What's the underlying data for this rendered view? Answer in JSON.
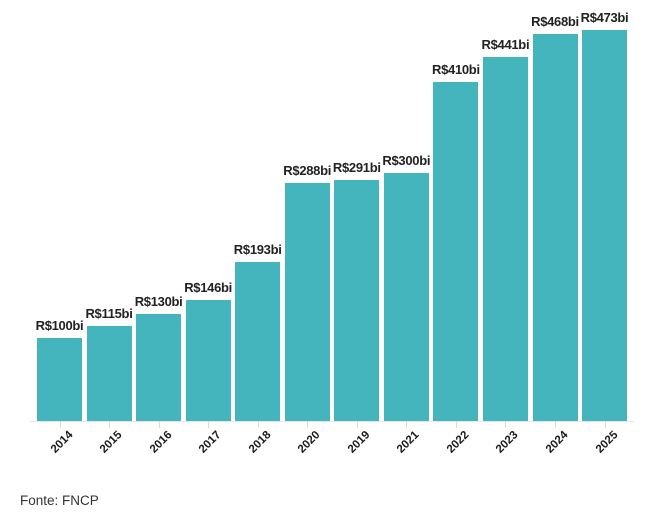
{
  "chart_data": {
    "type": "bar",
    "categories": [
      "2014",
      "2015",
      "2016",
      "2017",
      "2018",
      "2020",
      "2019",
      "2021",
      "2022",
      "2023",
      "2024",
      "2025"
    ],
    "values": [
      100,
      115,
      130,
      146,
      193,
      288,
      291,
      300,
      410,
      441,
      468,
      473
    ],
    "value_labels": [
      "R$100bi",
      "R$115bi",
      "R$130bi",
      "R$146bi",
      "R$193bi",
      "R$288bi",
      "R$291bi",
      "R$300bi",
      "R$410bi",
      "R$441bi",
      "R$468bi",
      "R$473bi"
    ],
    "title": "",
    "xlabel": "",
    "ylabel": "",
    "ylim": [
      0,
      473
    ],
    "grid": false,
    "legend_position": "none",
    "bar_color": "#45b5bd"
  },
  "colors": {
    "bar": "#45b5bd",
    "value_label_text": "#222222",
    "axis_label_text": "#1a1a1a",
    "axis_line": "#e7e7e7",
    "tick": "#d9d9d9",
    "source_text": "#333333",
    "background": "#ffffff"
  },
  "footer": {
    "source": "Fonte: FNCP"
  }
}
